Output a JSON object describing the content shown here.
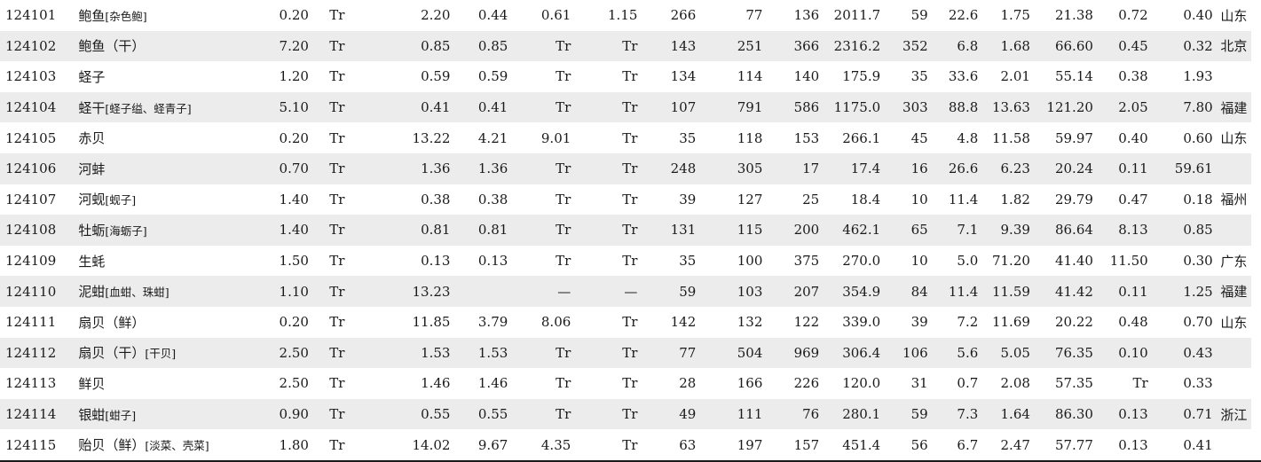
{
  "rows": [
    {
      "code": "124101",
      "name": "鲍鱼",
      "alias": "[杂色鲍]",
      "v": [
        "0.20",
        "Tr",
        "2.20",
        "0.44",
        "0.61",
        "1.15",
        "266",
        "77",
        "136",
        "2011.7",
        "59",
        "22.6",
        "1.75",
        "21.38",
        "0.72",
        "0.40"
      ],
      "region": "山东"
    },
    {
      "code": "124102",
      "name": "鲍鱼（干）",
      "alias": "",
      "v": [
        "7.20",
        "Tr",
        "0.85",
        "0.85",
        "Tr",
        "Tr",
        "143",
        "251",
        "366",
        "2316.2",
        "352",
        "6.8",
        "1.68",
        "66.60",
        "0.45",
        "0.32"
      ],
      "region": "北京"
    },
    {
      "code": "124103",
      "name": "蛏子",
      "alias": "",
      "v": [
        "1.20",
        "Tr",
        "0.59",
        "0.59",
        "Tr",
        "Tr",
        "134",
        "114",
        "140",
        "175.9",
        "35",
        "33.6",
        "2.01",
        "55.14",
        "0.38",
        "1.93"
      ],
      "region": ""
    },
    {
      "code": "124104",
      "name": "蛏干",
      "alias": "[蛏子缢、蛏青子]",
      "v": [
        "5.10",
        "Tr",
        "0.41",
        "0.41",
        "Tr",
        "Tr",
        "107",
        "791",
        "586",
        "1175.0",
        "303",
        "88.8",
        "13.63",
        "121.20",
        "2.05",
        "7.80"
      ],
      "region": "福建"
    },
    {
      "code": "124105",
      "name": "赤贝",
      "alias": "",
      "v": [
        "0.20",
        "Tr",
        "13.22",
        "4.21",
        "9.01",
        "Tr",
        "35",
        "118",
        "153",
        "266.1",
        "45",
        "4.8",
        "11.58",
        "59.97",
        "0.40",
        "0.60"
      ],
      "region": "山东"
    },
    {
      "code": "124106",
      "name": "河蚌",
      "alias": "",
      "v": [
        "0.70",
        "Tr",
        "1.36",
        "1.36",
        "Tr",
        "Tr",
        "248",
        "305",
        "17",
        "17.4",
        "16",
        "26.6",
        "6.23",
        "20.24",
        "0.11",
        "59.61"
      ],
      "region": ""
    },
    {
      "code": "124107",
      "name": "河蚬",
      "alias": "[蚬子]",
      "v": [
        "1.40",
        "Tr",
        "0.38",
        "0.38",
        "Tr",
        "Tr",
        "39",
        "127",
        "25",
        "18.4",
        "10",
        "11.4",
        "1.82",
        "29.79",
        "0.47",
        "0.18"
      ],
      "region": "福州"
    },
    {
      "code": "124108",
      "name": "牡蛎",
      "alias": "[海蛎子]",
      "v": [
        "1.40",
        "Tr",
        "0.81",
        "0.81",
        "Tr",
        "Tr",
        "131",
        "115",
        "200",
        "462.1",
        "65",
        "7.1",
        "9.39",
        "86.64",
        "8.13",
        "0.85"
      ],
      "region": ""
    },
    {
      "code": "124109",
      "name": "生蚝",
      "alias": "",
      "v": [
        "1.50",
        "Tr",
        "0.13",
        "0.13",
        "Tr",
        "Tr",
        "35",
        "100",
        "375",
        "270.0",
        "10",
        "5.0",
        "71.20",
        "41.40",
        "11.50",
        "0.30"
      ],
      "region": "广东"
    },
    {
      "code": "124110",
      "name": "泥蚶",
      "alias": "[血蚶、珠蚶]",
      "v": [
        "1.10",
        "Tr",
        "13.23",
        "",
        "—",
        "—",
        "59",
        "103",
        "207",
        "354.9",
        "84",
        "11.4",
        "11.59",
        "41.42",
        "0.11",
        "1.25"
      ],
      "region": "福建"
    },
    {
      "code": "124111",
      "name": "扇贝（鲜）",
      "alias": "",
      "v": [
        "0.20",
        "Tr",
        "11.85",
        "3.79",
        "8.06",
        "Tr",
        "142",
        "132",
        "122",
        "339.0",
        "39",
        "7.2",
        "11.69",
        "20.22",
        "0.48",
        "0.70"
      ],
      "region": "山东"
    },
    {
      "code": "124112",
      "name": "扇贝（干）",
      "alias": "[干贝]",
      "v": [
        "2.50",
        "Tr",
        "1.53",
        "1.53",
        "Tr",
        "Tr",
        "77",
        "504",
        "969",
        "306.4",
        "106",
        "5.6",
        "5.05",
        "76.35",
        "0.10",
        "0.43"
      ],
      "region": ""
    },
    {
      "code": "124113",
      "name": "鲜贝",
      "alias": "",
      "v": [
        "2.50",
        "Tr",
        "1.46",
        "1.46",
        "Tr",
        "Tr",
        "28",
        "166",
        "226",
        "120.0",
        "31",
        "0.7",
        "2.08",
        "57.35",
        "Tr",
        "0.33"
      ],
      "region": ""
    },
    {
      "code": "124114",
      "name": "银蚶",
      "alias": "[蚶子]",
      "v": [
        "0.90",
        "Tr",
        "0.55",
        "0.55",
        "Tr",
        "Tr",
        "49",
        "111",
        "76",
        "280.1",
        "59",
        "7.3",
        "1.64",
        "86.30",
        "0.13",
        "0.71"
      ],
      "region": "浙江"
    },
    {
      "code": "124115",
      "name": "贻贝（鲜）",
      "alias": "[淡菜、壳菜]",
      "v": [
        "1.80",
        "Tr",
        "14.02",
        "9.67",
        "4.35",
        "Tr",
        "63",
        "197",
        "157",
        "451.4",
        "56",
        "6.7",
        "2.47",
        "57.77",
        "0.13",
        "0.41"
      ],
      "region": ""
    }
  ]
}
